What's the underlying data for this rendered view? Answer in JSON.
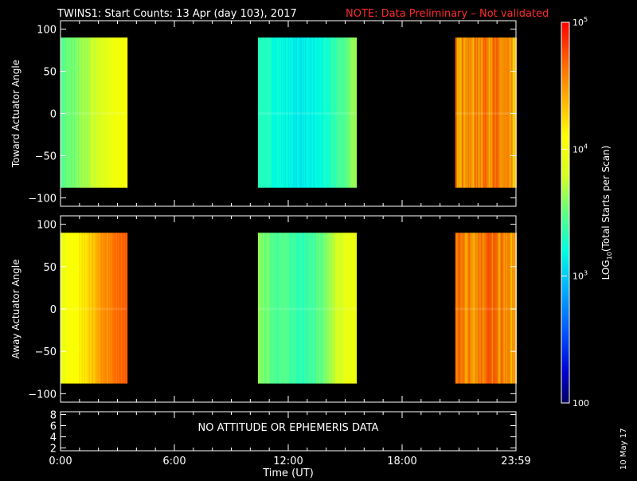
{
  "title": {
    "main": "TWINS1: Start Counts: 13 Apr (day 103), 2017",
    "note": "NOTE: Data Preliminary – Not validated"
  },
  "colors": {
    "background": "#000000",
    "text": "#ffffff",
    "note": "#ff2a2a"
  },
  "footer": {
    "date_stamp": "10 May 17"
  },
  "chart_data": [
    {
      "type": "heatmap",
      "panel": "top",
      "ylabel": "Toward Actuator Angle",
      "xlabel": "",
      "xlim": [
        0,
        24
      ],
      "ylim": [
        -110,
        110
      ],
      "yticks": [
        100,
        50,
        0,
        -50,
        -100
      ],
      "data_yrange": [
        -88,
        90
      ],
      "colorscale": "log10",
      "blocks": [
        {
          "x_start": 0.0,
          "x_end": 3.5,
          "gradient": [
            [
              0,
              2900
            ],
            [
              0.7,
              3500
            ],
            [
              1.4,
              4800
            ],
            [
              2.1,
              7000
            ],
            [
              2.8,
              9500
            ],
            [
              3.5,
              11500
            ]
          ]
        },
        {
          "x_start": 10.4,
          "x_end": 15.6,
          "gradient": [
            [
              10.4,
              2200
            ],
            [
              11.2,
              1700
            ],
            [
              12.2,
              1400
            ],
            [
              13.0,
              1300
            ],
            [
              14.0,
              1700
            ],
            [
              15.0,
              3000
            ],
            [
              15.6,
              4500
            ]
          ]
        },
        {
          "x_start": 20.8,
          "x_end": 24.0,
          "gradient": [
            [
              20.8,
              40000
            ],
            [
              21.6,
              30000
            ],
            [
              22.4,
              45000
            ],
            [
              23.2,
              32000
            ],
            [
              24.0,
              20000
            ]
          ]
        }
      ]
    },
    {
      "type": "heatmap",
      "panel": "middle",
      "ylabel": "Away Actuator Angle",
      "xlabel": "",
      "xlim": [
        0,
        24
      ],
      "ylim": [
        -110,
        110
      ],
      "yticks": [
        100,
        50,
        0,
        -50,
        -100
      ],
      "data_yrange": [
        -88,
        90
      ],
      "colorscale": "log10",
      "blocks": [
        {
          "x_start": 0.0,
          "x_end": 3.5,
          "gradient": [
            [
              0,
              9000
            ],
            [
              0.8,
              12000
            ],
            [
              1.6,
              20000
            ],
            [
              2.4,
              35000
            ],
            [
              3.0,
              45000
            ],
            [
              3.5,
              48000
            ]
          ]
        },
        {
          "x_start": 10.4,
          "x_end": 15.6,
          "gradient": [
            [
              10.4,
              4000
            ],
            [
              11.2,
              3000
            ],
            [
              12.2,
              2500
            ],
            [
              13.0,
              2300
            ],
            [
              14.0,
              3500
            ],
            [
              15.0,
              8000
            ],
            [
              15.6,
              10000
            ]
          ]
        },
        {
          "x_start": 20.8,
          "x_end": 24.0,
          "gradient": [
            [
              20.8,
              42000
            ],
            [
              21.6,
              33000
            ],
            [
              22.4,
              48000
            ],
            [
              23.2,
              35000
            ],
            [
              24.0,
              25000
            ]
          ]
        }
      ]
    },
    {
      "type": "line",
      "panel": "bottom",
      "ylim": [
        1.5,
        8.5
      ],
      "yticks": [
        8,
        6,
        4,
        2
      ],
      "xlim": [
        0,
        24
      ],
      "xticks": [
        0,
        6,
        12,
        18,
        24
      ],
      "xtick_labels": [
        "0:00",
        "6:00",
        "12:00",
        "18:00",
        "23:59"
      ],
      "xlabel": "Time (UT)",
      "message": "NO ATTITUDE OR EPHEMERIS DATA"
    }
  ],
  "colorbar": {
    "label": "LOG",
    "label_sub": "10",
    "label_rest": "(Total Starts per Scan)",
    "range": [
      100,
      100000
    ],
    "ticks": [
      {
        "value": 100000,
        "base": "10",
        "exp": "5"
      },
      {
        "value": 10000,
        "base": "10",
        "exp": "4"
      },
      {
        "value": 1000,
        "base": "10",
        "exp": "3"
      },
      {
        "value": 100,
        "base": "100",
        "exp": ""
      }
    ]
  }
}
